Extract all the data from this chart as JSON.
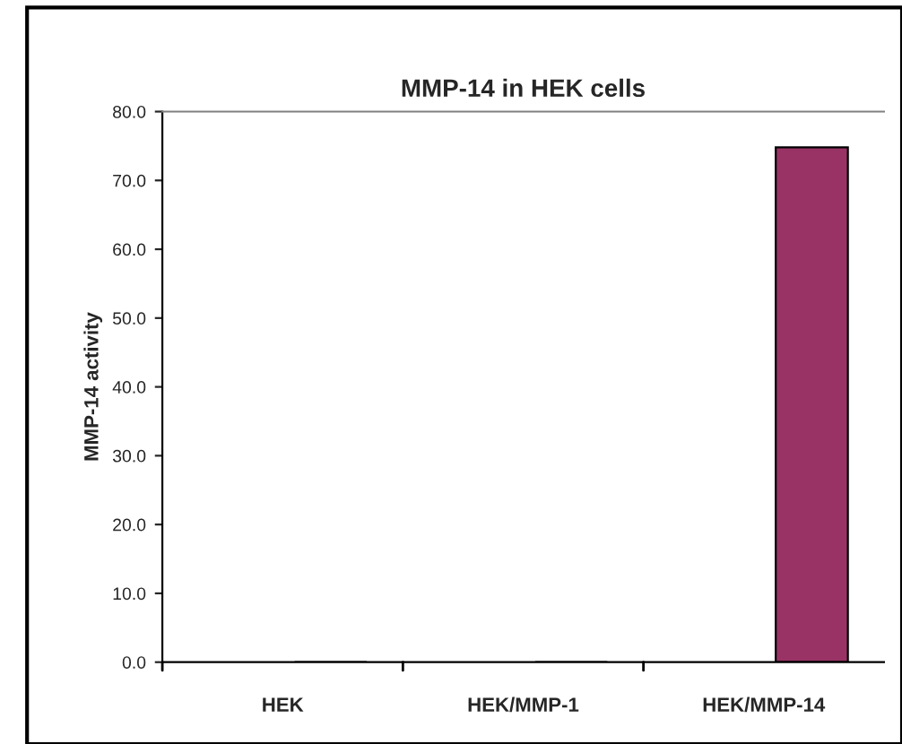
{
  "chart_data": {
    "type": "bar",
    "title": "MMP-14 in HEK cells",
    "ylabel": "MMP-14 activity",
    "categories": [
      "HEK",
      "HEK/MMP-1",
      "HEK/MMP-14"
    ],
    "values": [
      0,
      0,
      74.8
    ],
    "color": "#993366",
    "ylim": [
      0,
      80
    ],
    "yticks": [
      {
        "value": 0,
        "label": "0.0"
      },
      {
        "value": 10,
        "label": "10.0"
      },
      {
        "value": 20,
        "label": "20.0"
      },
      {
        "value": 30,
        "label": "30.0"
      },
      {
        "value": 40,
        "label": "40.0"
      },
      {
        "value": 50,
        "label": "50.0"
      },
      {
        "value": 60,
        "label": "60.0"
      },
      {
        "value": 70,
        "label": "70.0"
      },
      {
        "value": 80,
        "label": "80.0"
      }
    ],
    "grid": false,
    "legend": false
  }
}
